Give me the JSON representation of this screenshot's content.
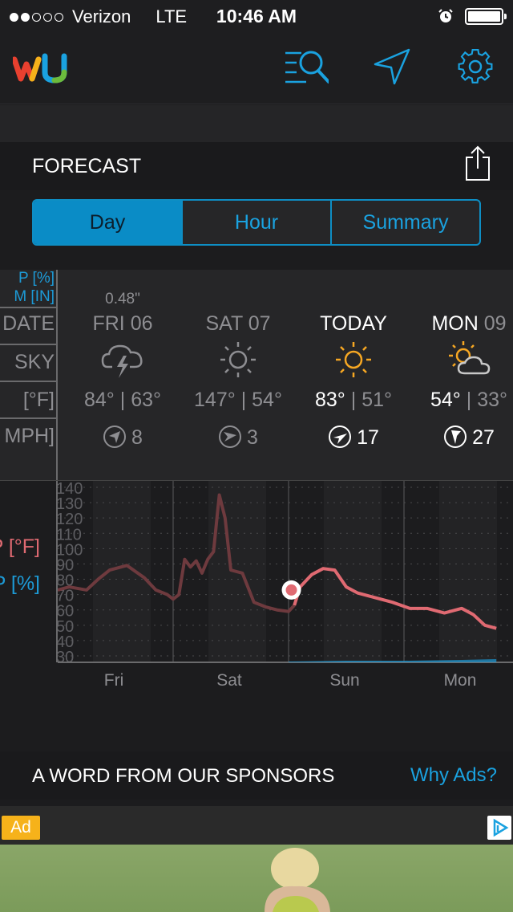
{
  "status_bar": {
    "carrier": "Verizon",
    "network": "LTE",
    "time": "10:46 AM",
    "signal_bars": 2,
    "signal_total": 5
  },
  "nav": {
    "logo": "wu-logo",
    "icons": [
      "search-list-icon",
      "location-arrow-icon",
      "gear-icon"
    ],
    "accent": "#1aa2e0"
  },
  "forecast": {
    "title": "FORECAST",
    "tabs": [
      {
        "label": "Day",
        "active": true
      },
      {
        "label": "Hour",
        "active": false
      },
      {
        "label": "Summary",
        "active": false
      }
    ],
    "row_labels": {
      "precip_pct": "P [%]",
      "precip_in": "M [IN]",
      "date": "DATE",
      "sky": "SKY",
      "temp": "[°F]",
      "wind": "MPH]"
    },
    "days": [
      {
        "precip": "0.48\"",
        "day": "FRI",
        "date": "06",
        "icon": "thunderstorm-icon",
        "hi": "84°",
        "lo": "63°",
        "wind": "8"
      },
      {
        "precip": "",
        "day": "SAT",
        "date": "07",
        "icon": "sun-icon",
        "hi": "147°",
        "lo": "54°",
        "wind": "3"
      },
      {
        "precip": "",
        "day": "TODAY",
        "date": "",
        "icon": "sun-icon",
        "hi": "83°",
        "lo": "51°",
        "wind": "17"
      },
      {
        "precip": "",
        "day": "MON",
        "date": "09",
        "icon": "partly-cloudy-icon",
        "hi": "54°",
        "lo": "33°",
        "wind": "27"
      }
    ]
  },
  "chart_labels": {
    "temp": "P [°F]",
    "precip": "P [%]"
  },
  "chart_data": {
    "type": "line",
    "y_ticks": [
      "140",
      "130",
      "120",
      "110",
      "100",
      "90",
      "80",
      "70",
      "60",
      "50",
      "40",
      "30"
    ],
    "ylim": [
      30,
      140
    ],
    "x_ticks": [
      "Fri",
      "Sat",
      "Sun",
      "Mon"
    ],
    "series": [
      {
        "name": "Temperature",
        "color": "#e06a72",
        "x": [
          0,
          0.1,
          0.25,
          0.35,
          0.45,
          0.6,
          0.75,
          0.85,
          0.95,
          1.0,
          1.05,
          1.1,
          1.15,
          1.2,
          1.25,
          1.3,
          1.35,
          1.4,
          1.45,
          1.5,
          1.55,
          1.6,
          1.7,
          1.8,
          1.9,
          2.0,
          2.05,
          2.1,
          2.2,
          2.3,
          2.4,
          2.5,
          2.6,
          2.75,
          2.9,
          3.05,
          3.2,
          3.35,
          3.5,
          3.6,
          3.7,
          3.8
        ],
        "y": [
          73,
          75,
          73,
          80,
          86,
          89,
          81,
          73,
          70,
          67,
          70,
          93,
          88,
          92,
          84,
          93,
          98,
          135,
          120,
          86,
          85,
          84,
          65,
          62,
          60,
          59,
          63,
          75,
          83,
          87,
          86,
          75,
          71,
          68,
          65,
          61,
          61,
          58,
          61,
          57,
          50,
          48
        ]
      },
      {
        "name": "Precipitation",
        "color": "#1d9ad6",
        "x": [
          2.0,
          2.5,
          3.0,
          3.5,
          3.8
        ],
        "y": [
          1,
          2,
          2,
          3,
          4
        ]
      }
    ],
    "current_marker": {
      "x": 2.08,
      "y": 73
    },
    "grid": true
  },
  "sponsor": {
    "title": "A WORD FROM OUR SPONSORS",
    "why_ads": "Why Ads?"
  },
  "ad": {
    "badge": "Ad"
  }
}
